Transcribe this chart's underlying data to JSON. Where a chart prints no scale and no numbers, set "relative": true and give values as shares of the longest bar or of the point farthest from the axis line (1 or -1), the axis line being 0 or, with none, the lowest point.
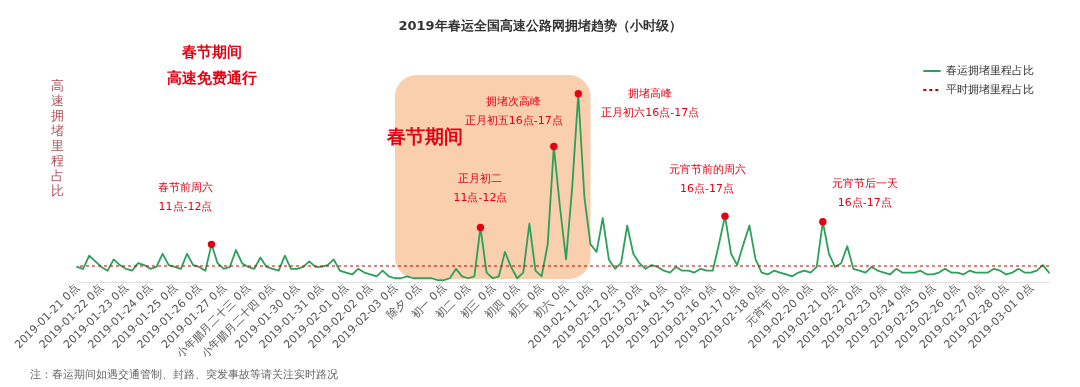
{
  "chart_data": {
    "type": "line",
    "title": "2019年春运全国高速公路网拥堵趋势（小时级）",
    "ylabel": "高速拥堵里程占比",
    "relative": true,
    "legend": "top right",
    "grid": false,
    "categories": [
      "2019-01-21 0点",
      null,
      null,
      null,
      "2019-01-22 0点",
      null,
      null,
      null,
      "2019-01-23 0点",
      null,
      null,
      null,
      "2019-01-24 0点",
      null,
      null,
      null,
      "2019-01-25 0点",
      null,
      null,
      null,
      "2019-01-26 0点",
      null,
      null,
      null,
      "2019-01-27 0点",
      null,
      null,
      null,
      "小年腊月二十三 0点",
      null,
      null,
      null,
      "小年腊月二十四 0点",
      null,
      null,
      null,
      "2019-01-30 0点",
      null,
      null,
      null,
      "2019-01-31 0点",
      null,
      null,
      null,
      "2019-02-01 0点",
      null,
      null,
      null,
      "2019-02-02 0点",
      null,
      null,
      null,
      "2019-02-03 0点",
      null,
      null,
      null,
      "除夕 0点",
      null,
      null,
      null,
      "初一 0点",
      null,
      null,
      null,
      "初二 0点",
      null,
      null,
      null,
      "初三 0点",
      null,
      null,
      null,
      "初四 0点",
      null,
      null,
      null,
      "初五 0点",
      null,
      null,
      null,
      "初六 0点",
      null,
      null,
      null,
      "2019-02-11 0点",
      null,
      null,
      null,
      "2019-02-12 0点",
      null,
      null,
      null,
      "2019-02-13 0点",
      null,
      null,
      null,
      "2019-02-14 0点",
      null,
      null,
      null,
      "2019-02-15 0点",
      null,
      null,
      null,
      "2019-02-16 0点",
      null,
      null,
      null,
      "2019-02-17 0点",
      null,
      null,
      null,
      "2019-02-18 0点",
      null,
      null,
      null,
      "元宵节 0点",
      null,
      null,
      null,
      "2019-02-20 0点",
      null,
      null,
      null,
      "2019-02-21 0点",
      null,
      null,
      null,
      "2019-02-22 0点",
      null,
      null,
      null,
      "2019-02-23 0点",
      null,
      null,
      null,
      "2019-02-24 0点",
      null,
      null,
      null,
      "2019-02-25 0点",
      null,
      null,
      null,
      "2019-02-26 0点",
      null,
      null,
      null,
      "2019-02-27 0点",
      null,
      null,
      null,
      "2019-02-28 0点",
      null,
      null,
      null,
      "2019-03-01 0点",
      null,
      null,
      null
    ],
    "series": [
      {
        "name": "春运拥堵里程占比",
        "color": "#2ca05a",
        "values": [
          0.08,
          0.07,
          0.14,
          0.11,
          0.08,
          0.06,
          0.12,
          0.09,
          0.07,
          0.06,
          0.1,
          0.09,
          0.07,
          0.08,
          0.15,
          0.09,
          0.08,
          0.07,
          0.15,
          0.09,
          0.08,
          0.06,
          0.2,
          0.1,
          0.07,
          0.08,
          0.17,
          0.1,
          0.08,
          0.07,
          0.13,
          0.08,
          0.07,
          0.06,
          0.14,
          0.07,
          0.07,
          0.08,
          0.11,
          0.08,
          0.08,
          0.09,
          0.12,
          0.06,
          0.05,
          0.04,
          0.07,
          0.05,
          0.04,
          0.03,
          0.06,
          0.03,
          0.02,
          0.02,
          0.03,
          0.02,
          0.02,
          0.02,
          0.02,
          0.01,
          0.01,
          0.02,
          0.07,
          0.03,
          0.02,
          0.03,
          0.29,
          0.05,
          0.02,
          0.03,
          0.16,
          0.08,
          0.02,
          0.05,
          0.31,
          0.06,
          0.03,
          0.2,
          0.72,
          0.4,
          0.12,
          0.5,
          1,
          0.45,
          0.2,
          0.16,
          0.34,
          0.12,
          0.07,
          0.1,
          0.3,
          0.15,
          0.1,
          0.07,
          0.09,
          0.08,
          0.06,
          0.05,
          0.08,
          0.06,
          0.06,
          0.05,
          0.07,
          0.06,
          0.06,
          0.2,
          0.35,
          0.15,
          0.09,
          0.2,
          0.3,
          0.12,
          0.05,
          0.04,
          0.06,
          0.05,
          0.04,
          0.03,
          0.05,
          0.06,
          0.05,
          0.08,
          0.32,
          0.15,
          0.08,
          0.1,
          0.19,
          0.07,
          0.06,
          0.05,
          0.08,
          0.06,
          0.05,
          0.04,
          0.07,
          0.05,
          0.05,
          0.05,
          0.06,
          0.04,
          0.04,
          0.05,
          0.07,
          0.05,
          0.05,
          0.04,
          0.06,
          0.05,
          0.05,
          0.05,
          0.07,
          0.06,
          0.04,
          0.05,
          0.07,
          0.05,
          0.05,
          0.06,
          0.09,
          0.05
        ]
      },
      {
        "type": "scatter",
        "color": "#e60012",
        "values": [
          null,
          null,
          null,
          null,
          null,
          null,
          null,
          null,
          null,
          null,
          null,
          null,
          null,
          null,
          null,
          null,
          null,
          null,
          null,
          null,
          null,
          null,
          0.2,
          null,
          null,
          null,
          null,
          null,
          null,
          null,
          null,
          null,
          null,
          null,
          null,
          null,
          null,
          null,
          null,
          null,
          null,
          null,
          null,
          null,
          null,
          null,
          null,
          null,
          null,
          null,
          null,
          null,
          null,
          null,
          null,
          null,
          null,
          null,
          null,
          null,
          null,
          null,
          null,
          null,
          null,
          null,
          0.29,
          null,
          null,
          null,
          null,
          null,
          null,
          null,
          null,
          null,
          null,
          null,
          0.72,
          null,
          null,
          null,
          1,
          null,
          null,
          null,
          null,
          null,
          null,
          null,
          null,
          null,
          null,
          null,
          null,
          null,
          null,
          null,
          null,
          null,
          null,
          null,
          null,
          null,
          null,
          null,
          0.35,
          null,
          null,
          null,
          null,
          null,
          null,
          null,
          null,
          null,
          null,
          null,
          null,
          null,
          null,
          null,
          0.32,
          null,
          null,
          null,
          null,
          null,
          null,
          null,
          null,
          null,
          null,
          null,
          null,
          null,
          null,
          null,
          null,
          null,
          null,
          null,
          null,
          null,
          null,
          null,
          null,
          null,
          null,
          null,
          null,
          null,
          null,
          null,
          null,
          null,
          null,
          null,
          null,
          null
        ]
      }
    ],
    "ref_lines": [
      {
        "axis": "y",
        "value": 0.085,
        "label": "平时拥堵里程占比",
        "color": "#c00000",
        "line_style": "dashed"
      }
    ],
    "bands": [
      {
        "axis": "x",
        "from": "2019-02-03 0点",
        "to": "2019-02-11 0点",
        "label": "春节期间",
        "color": "#f9cfae"
      }
    ],
    "annotations": [
      "春节期间",
      "高速免费通行",
      "春节前周六",
      "11点-12点",
      "正月初二",
      "11点-12点",
      "拥堵次高峰",
      "正月初五16点-17点",
      "拥堵高峰",
      "正月初六16点-17点",
      "元宵节前的周六",
      "16点-17点",
      "元宵节后一天",
      "16点-17点",
      "注：春运期间如遇交通管制、封路、突发事故等请关注实时路况"
    ]
  }
}
